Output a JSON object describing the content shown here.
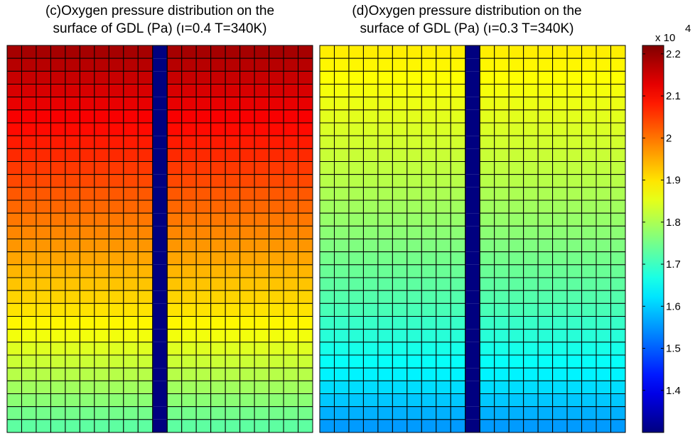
{
  "chart_data": [
    {
      "type": "heatmap",
      "title": [
        "(c)Oxygen pressure distribution on the",
        "surface of GDL (Pa) (ı=0.4 T=340K)"
      ],
      "grid": {
        "rows": 30,
        "cols": 21,
        "channel_col": 10
      },
      "channel_value": 13000,
      "row_values_top_to_bottom": [
        21850,
        21700,
        21550,
        21400,
        21250,
        21100,
        20960,
        20820,
        20680,
        20540,
        20400,
        20260,
        20120,
        19980,
        19840,
        19700,
        19560,
        19420,
        19280,
        19140,
        19000,
        18820,
        18640,
        18460,
        18280,
        18100,
        17900,
        17700,
        17500,
        17300
      ],
      "clim": [
        13000,
        22200
      ]
    },
    {
      "type": "heatmap",
      "title": [
        "(d)Oxygen pressure distribution on the",
        "surface of GDL (Pa) (ı=0.3 T=340K)"
      ],
      "grid": {
        "rows": 30,
        "cols": 21,
        "channel_col": 10
      },
      "channel_value": 13000,
      "row_values_top_to_bottom": [
        18900,
        18820,
        18740,
        18660,
        18580,
        18500,
        18420,
        18340,
        18260,
        18180,
        18100,
        18000,
        17900,
        17800,
        17700,
        17600,
        17500,
        17400,
        17300,
        17200,
        17100,
        16950,
        16800,
        16650,
        16500,
        16350,
        16150,
        15950,
        15750,
        15550
      ],
      "clim": [
        13000,
        22200
      ]
    }
  ],
  "colorbar": {
    "colormap": "jet",
    "range": [
      13000,
      22200
    ],
    "ticks": [
      "1.4",
      "1.5",
      "1.6",
      "1.7",
      "1.8",
      "1.9",
      "2",
      "2.1",
      "2.2"
    ],
    "tick_values": [
      14000,
      15000,
      16000,
      17000,
      18000,
      19000,
      20000,
      21000,
      22000
    ],
    "multiplier_base": "x 10",
    "multiplier_exp": "4"
  }
}
